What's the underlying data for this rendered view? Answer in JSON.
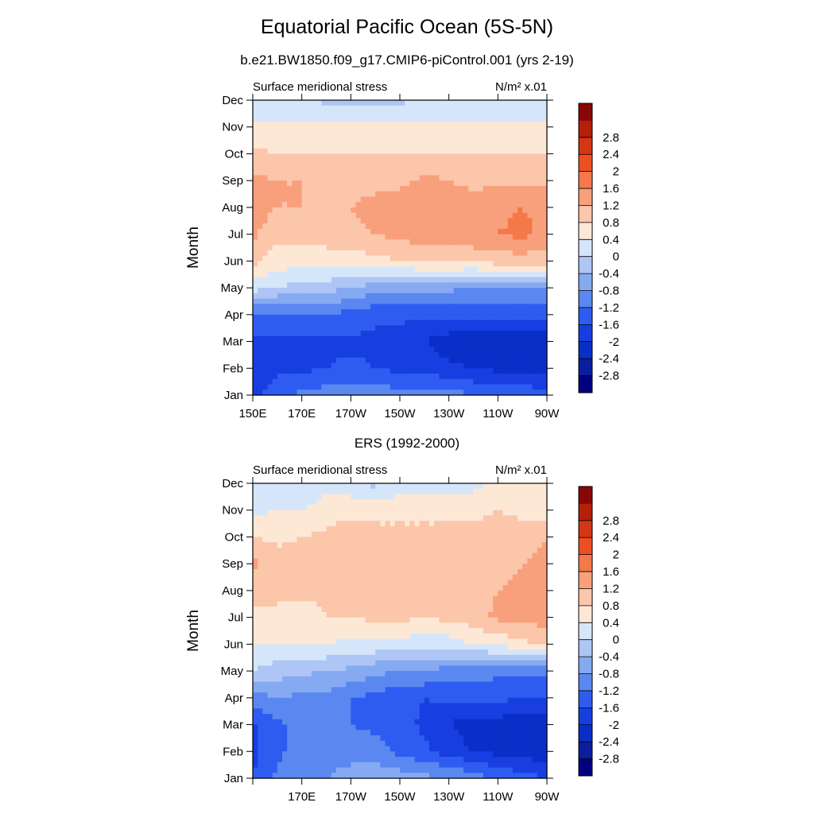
{
  "main_title": "Equatorial Pacific Ocean (5S-5N)",
  "subtitle": "b.e21.BW1850.f09_g17.CMIP6-piControl.001 (yrs 2-19)",
  "chart_data": [
    {
      "type": "heatmap",
      "title": "",
      "left_label": "Surface meridional stress",
      "right_label": "N/m² x.01",
      "ylabel": "Month",
      "xlabel": "",
      "x_ticks": [
        "150E",
        "170E",
        "170W",
        "150W",
        "130W",
        "110W",
        "90W"
      ],
      "y_ticks": [
        "Jan",
        "Feb",
        "Mar",
        "Apr",
        "May",
        "Jun",
        "Jul",
        "Aug",
        "Sep",
        "Oct",
        "Nov",
        "Dec"
      ],
      "xlim": [
        150,
        270
      ],
      "ylim": [
        1,
        12
      ],
      "x": [
        150,
        160,
        170,
        180,
        190,
        200,
        210,
        220,
        230,
        240,
        250,
        260,
        270
      ],
      "y": [
        1,
        2,
        3,
        4,
        5,
        6,
        7,
        8,
        9,
        10,
        11,
        12
      ],
      "z": [
        [
          -1.8,
          -1.3,
          -1.1,
          -1.0,
          -1.0,
          -1.0,
          -1.0,
          -1.0,
          -1.0,
          -1.2,
          -1.2,
          -1.3,
          -1.4
        ],
        [
          -1.9,
          -1.7,
          -1.7,
          -1.6,
          -1.5,
          -1.6,
          -1.7,
          -1.8,
          -1.9,
          -2.0,
          -2.1,
          -2.2,
          -2.2
        ],
        [
          -1.7,
          -1.7,
          -1.7,
          -1.7,
          -1.7,
          -1.7,
          -1.8,
          -2.0,
          -2.2,
          -2.4,
          -2.4,
          -2.4,
          -2.3
        ],
        [
          -1.3,
          -1.3,
          -1.3,
          -1.3,
          -1.3,
          -1.5,
          -1.5,
          -1.5,
          -1.5,
          -1.5,
          -1.5,
          -1.5,
          -1.5
        ],
        [
          0.2,
          0.0,
          -0.2,
          -0.2,
          -0.4,
          -0.6,
          -0.6,
          -0.7,
          -0.7,
          -0.8,
          -0.8,
          -0.9,
          -0.9
        ],
        [
          0.9,
          0.6,
          0.6,
          0.6,
          0.6,
          0.7,
          0.8,
          0.9,
          0.9,
          0.9,
          1.0,
          1.0,
          1.0
        ],
        [
          1.3,
          0.9,
          0.9,
          1.0,
          1.1,
          1.2,
          1.3,
          1.4,
          1.4,
          1.5,
          1.6,
          1.7,
          1.5
        ],
        [
          1.4,
          1.2,
          1.2,
          1.2,
          1.2,
          1.3,
          1.4,
          1.4,
          1.4,
          1.4,
          1.5,
          1.6,
          1.5
        ],
        [
          1.3,
          1.2,
          1.2,
          1.1,
          1.1,
          1.1,
          1.1,
          1.3,
          1.2,
          1.1,
          1.1,
          1.1,
          1.1
        ],
        [
          0.9,
          0.8,
          0.8,
          0.8,
          0.8,
          0.8,
          0.8,
          0.8,
          0.8,
          0.8,
          0.8,
          0.8,
          0.8
        ],
        [
          0.5,
          0.5,
          0.5,
          0.5,
          0.5,
          0.5,
          0.5,
          0.5,
          0.5,
          0.5,
          0.5,
          0.5,
          0.5
        ],
        [
          0.1,
          0.1,
          0.1,
          -0.1,
          -0.1,
          -0.1,
          -0.1,
          0.1,
          0.1,
          0.1,
          0.1,
          0.1,
          0.1
        ]
      ],
      "colorbar_levels": [
        -2.8,
        -2.4,
        -2,
        -1.6,
        -1.2,
        -0.8,
        -0.4,
        0,
        0.4,
        0.8,
        1.2,
        1.6,
        2,
        2.4,
        2.8
      ]
    },
    {
      "type": "heatmap",
      "title": "ERS (1992-2000)",
      "left_label": "Surface meridional stress",
      "right_label": "N/m² x.01",
      "ylabel": "Month",
      "xlabel": "",
      "x_ticks": [
        "170E",
        "170W",
        "150W",
        "130W",
        "110W",
        "90W"
      ],
      "y_ticks": [
        "Jan",
        "Feb",
        "Mar",
        "Apr",
        "May",
        "Jun",
        "Jul",
        "Aug",
        "Sep",
        "Oct",
        "Nov",
        "Dec"
      ],
      "xlim": [
        150,
        270
      ],
      "ylim": [
        1,
        12
      ],
      "x": [
        150,
        160,
        170,
        180,
        190,
        200,
        210,
        220,
        230,
        240,
        250,
        260,
        270
      ],
      "y": [
        1,
        2,
        3,
        4,
        5,
        6,
        7,
        8,
        9,
        10,
        11,
        12
      ],
      "z": [
        [
          -1.6,
          -1.1,
          -1.0,
          -0.8,
          -0.6,
          -0.5,
          -0.6,
          -0.7,
          -0.8,
          -1.0,
          -1.3,
          -1.4,
          -1.6
        ],
        [
          -1.7,
          -1.3,
          -1.0,
          -1.0,
          -1.0,
          -1.0,
          -1.3,
          -1.5,
          -1.8,
          -2.0,
          -2.1,
          -2.2,
          -2.3
        ],
        [
          -1.7,
          -1.3,
          -1.1,
          -0.9,
          -1.2,
          -1.3,
          -1.4,
          -1.7,
          -2.0,
          -2.2,
          -2.2,
          -2.3,
          -2.4
        ],
        [
          -1.0,
          -0.8,
          -0.9,
          -0.9,
          -1.2,
          -1.3,
          -1.5,
          -1.6,
          -1.5,
          -1.5,
          -1.5,
          -1.6,
          -1.6
        ],
        [
          0.0,
          -0.2,
          -0.3,
          -0.4,
          -0.5,
          -0.7,
          -0.8,
          -0.8,
          -1.0,
          -1.0,
          -1.1,
          -1.1,
          -1.1
        ],
        [
          0.4,
          0.4,
          0.4,
          0.4,
          0.3,
          0.3,
          0.3,
          0.1,
          0.2,
          0.4,
          0.5,
          0.7,
          0.9
        ],
        [
          0.7,
          0.7,
          0.6,
          0.8,
          0.8,
          0.9,
          0.9,
          0.8,
          0.9,
          1.0,
          1.3,
          1.3,
          1.4
        ],
        [
          1.0,
          0.9,
          0.9,
          0.9,
          0.9,
          1.0,
          1.0,
          1.0,
          1.0,
          1.0,
          1.2,
          1.3,
          1.4
        ],
        [
          1.3,
          1.0,
          1.0,
          0.9,
          1.0,
          1.0,
          1.1,
          1.1,
          1.0,
          1.0,
          1.0,
          1.2,
          1.3
        ],
        [
          0.8,
          0.7,
          0.8,
          0.9,
          1.0,
          1.0,
          1.0,
          1.0,
          0.9,
          1.1,
          1.0,
          1.0,
          1.2
        ],
        [
          0.3,
          0.4,
          0.4,
          0.6,
          0.7,
          0.6,
          0.6,
          0.6,
          0.7,
          0.6,
          0.8,
          0.7,
          0.6
        ],
        [
          0.1,
          0.3,
          0.0,
          0.3,
          0.1,
          -0.1,
          0.3,
          0.3,
          0.2,
          0.3,
          0.5,
          0.5,
          0.5
        ]
      ],
      "colorbar_levels": [
        -2.8,
        -2.4,
        -2,
        -1.6,
        -1.2,
        -0.8,
        -0.4,
        0,
        0.4,
        0.8,
        1.2,
        1.6,
        2,
        2.4,
        2.8
      ]
    }
  ],
  "palette": [
    "#000080",
    "#0a1ea0",
    "#0a2ec8",
    "#163ee0",
    "#2e5cf0",
    "#5a88f0",
    "#86aaf2",
    "#aec6f5",
    "#d6e6fa",
    "#fde8d6",
    "#fbc6aa",
    "#f8a07c",
    "#f4784a",
    "#ee4f22",
    "#d43512",
    "#b4200a",
    "#8a0606"
  ]
}
